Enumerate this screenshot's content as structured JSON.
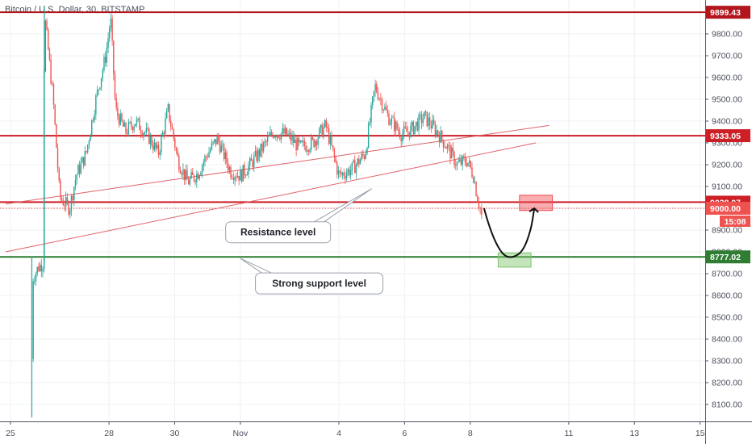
{
  "chart_data": {
    "type": "candlestick",
    "title": "Bitcoin / U.S. Dollar, 30, BITSTAMP",
    "ylim": [
      8030,
      9960
    ],
    "y_ticks": [
      "9800.00",
      "9700.00",
      "9600.00",
      "9500.00",
      "9400.00",
      "9300.00",
      "9200.00",
      "9100.00",
      "9000.00",
      "8900.00",
      "8800.00",
      "8700.00",
      "8600.00",
      "8500.00",
      "8400.00",
      "8300.00",
      "8200.00",
      "8100.00"
    ],
    "y_tick_values": [
      9800,
      9700,
      9600,
      9500,
      9400,
      9300,
      9200,
      9100,
      9000,
      8900,
      8800,
      8700,
      8600,
      8500,
      8400,
      8300,
      8200,
      8100
    ],
    "x_ticks": [
      {
        "label": "25",
        "day": 0
      },
      {
        "label": "28",
        "day": 3
      },
      {
        "label": "30",
        "day": 5
      },
      {
        "label": "Nov",
        "day": 7
      },
      {
        "label": "4",
        "day": 10
      },
      {
        "label": "6",
        "day": 12
      },
      {
        "label": "8",
        "day": 14
      },
      {
        "label": "11",
        "day": 17
      },
      {
        "label": "13",
        "day": 19
      },
      {
        "label": "15",
        "day": 21
      }
    ],
    "price_path": [
      [
        0.65,
        8310
      ],
      [
        0.68,
        8680
      ],
      [
        0.85,
        8730
      ],
      [
        1.0,
        8750
      ],
      [
        1.03,
        9900
      ],
      [
        1.3,
        9500
      ],
      [
        1.5,
        9050
      ],
      [
        1.8,
        9000
      ],
      [
        2.0,
        9150
      ],
      [
        2.3,
        9250
      ],
      [
        2.6,
        9500
      ],
      [
        2.9,
        9700
      ],
      [
        3.05,
        9870
      ],
      [
        3.2,
        9450
      ],
      [
        3.5,
        9350
      ],
      [
        3.8,
        9400
      ],
      [
        4.2,
        9330
      ],
      [
        4.5,
        9250
      ],
      [
        4.8,
        9450
      ],
      [
        5.1,
        9220
      ],
      [
        5.4,
        9120
      ],
      [
        5.7,
        9160
      ],
      [
        6.0,
        9250
      ],
      [
        6.3,
        9320
      ],
      [
        6.7,
        9170
      ],
      [
        7.0,
        9150
      ],
      [
        7.3,
        9200
      ],
      [
        7.6,
        9260
      ],
      [
        8.0,
        9350
      ],
      [
        8.4,
        9340
      ],
      [
        8.8,
        9280
      ],
      [
        9.2,
        9300
      ],
      [
        9.6,
        9380
      ],
      [
        10.0,
        9150
      ],
      [
        10.4,
        9180
      ],
      [
        10.8,
        9250
      ],
      [
        11.1,
        9560
      ],
      [
        11.5,
        9420
      ],
      [
        11.9,
        9340
      ],
      [
        12.2,
        9360
      ],
      [
        12.6,
        9420
      ],
      [
        13.0,
        9350
      ],
      [
        13.3,
        9280
      ],
      [
        13.6,
        9200
      ],
      [
        13.9,
        9220
      ],
      [
        14.1,
        9150
      ],
      [
        14.22,
        9050
      ],
      [
        14.3,
        9000
      ],
      [
        14.35,
        8960
      ]
    ],
    "horizontal_levels": [
      {
        "price": 9899.43,
        "label": "9899.43",
        "color": "#b2161c"
      },
      {
        "price": 9333.05,
        "label": "9333.05",
        "color": "#cc1f26"
      },
      {
        "price": 9028.07,
        "label": "9028.07",
        "color": "#cc1f26"
      },
      {
        "price": 8777.02,
        "label": "8777.02",
        "color": "#2e7d32"
      }
    ],
    "current_price": {
      "price": 9000.0,
      "label": "9000.00",
      "countdown": "15:08"
    },
    "trendlines": [
      {
        "from": [
          -0.15,
          9020
        ],
        "to": [
          16.4,
          9380
        ]
      },
      {
        "from": [
          -0.15,
          8800
        ],
        "to": [
          16.0,
          9300
        ]
      }
    ],
    "zones": [
      {
        "day_from": 15.5,
        "day_to": 16.5,
        "price_from": 8990,
        "price_to": 9060,
        "color": "#f04a52"
      },
      {
        "day_from": 14.85,
        "day_to": 15.85,
        "price_from": 8730,
        "price_to": 8795,
        "color": "#7cc46a"
      }
    ],
    "projection_arrow": {
      "points": [
        [
          14.42,
          9000
        ],
        [
          14.6,
          8900
        ],
        [
          14.95,
          8790
        ],
        [
          15.25,
          8770
        ],
        [
          15.6,
          8800
        ],
        [
          15.85,
          8900
        ],
        [
          15.95,
          9000
        ]
      ]
    },
    "annotations": [
      {
        "text": "Resistance level",
        "anchor": [
          11.0,
          9090
        ],
        "box_day": 8.15,
        "box_price": 8890
      },
      {
        "text": "Strong support level",
        "anchor": [
          7.0,
          8770
        ],
        "box_day": 9.4,
        "box_price": 8655
      }
    ]
  }
}
